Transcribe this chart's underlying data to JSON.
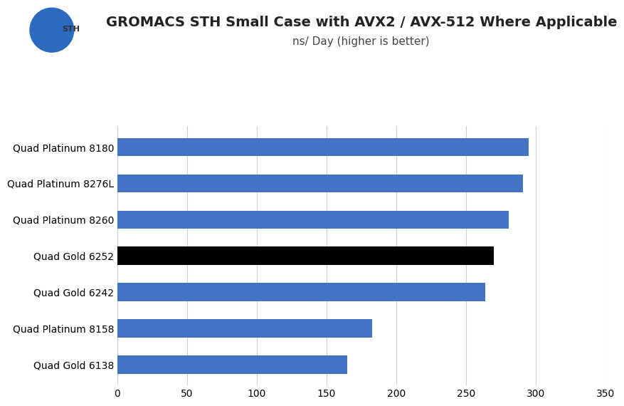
{
  "title": "GROMACS STH Small Case with AVX2 / AVX-512 Where Applicable",
  "subtitle": "ns/ Day (higher is better)",
  "categories": [
    "Quad Gold 6138",
    "Quad Platinum 8158",
    "Quad Gold 6242",
    "Quad Gold 6252",
    "Quad Platinum 8260",
    "Quad Platinum 8276L",
    "Quad Platinum 8180"
  ],
  "values": [
    165,
    183,
    264,
    270,
    281,
    291,
    295
  ],
  "bar_colors": [
    "#4472c4",
    "#4472c4",
    "#4472c4",
    "#000000",
    "#4472c4",
    "#4472c4",
    "#4472c4"
  ],
  "xlim": [
    0,
    350
  ],
  "xticks": [
    0,
    50,
    100,
    150,
    200,
    250,
    300,
    350
  ],
  "bar_height": 0.5,
  "title_fontsize": 14,
  "subtitle_fontsize": 11,
  "tick_fontsize": 10,
  "label_fontsize": 10,
  "background_color": "#ffffff",
  "grid_color": "#d0d0d0"
}
